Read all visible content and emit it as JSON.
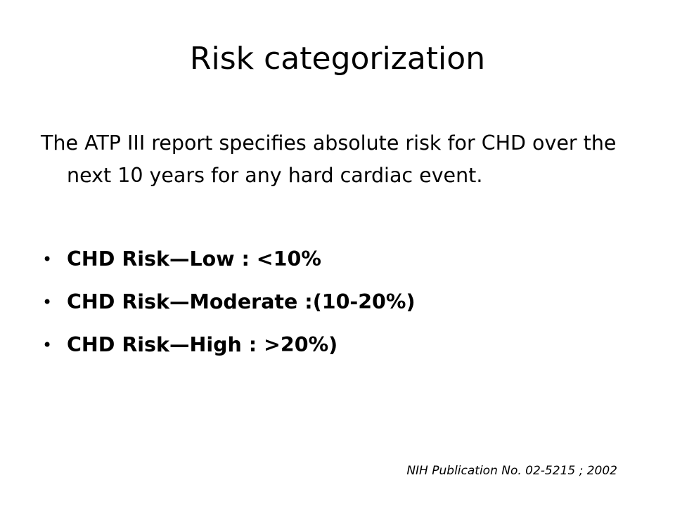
{
  "slide": {
    "title": "Risk categorization",
    "intro": "The ATP III report specifies absolute risk for CHD over the next 10 years for any hard cardiac event.",
    "bullets": [
      "CHD Risk—Low : <10%",
      "CHD Risk—Moderate :(10-20%)",
      "CHD Risk—High : >20%)"
    ],
    "bullet_glyph": "•",
    "source": "NIH Publication No. 02-5215 ; 2002"
  }
}
